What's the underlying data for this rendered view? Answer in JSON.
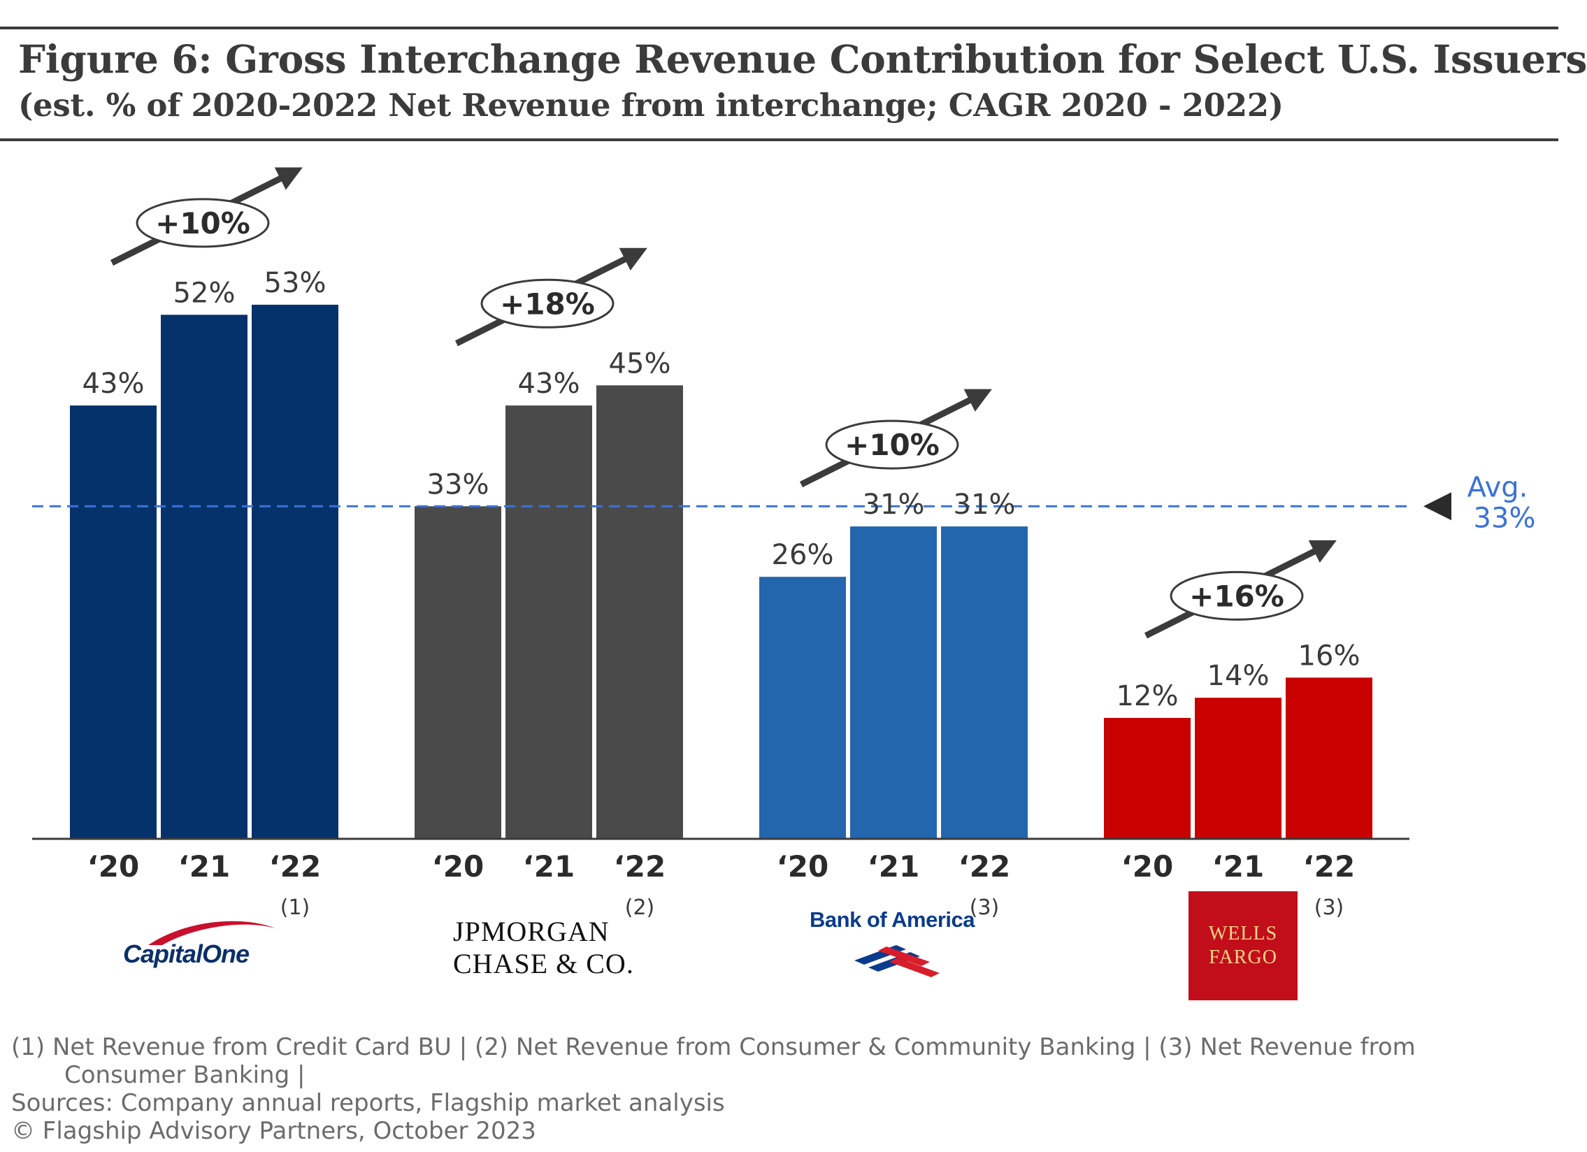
{
  "title": "Figure 6: Gross Interchange Revenue Contribution for Select U.S. Issuers",
  "subtitle": "(est. % of 2020-2022 Net Revenue from interchange; CAGR 2020 - 2022)",
  "colors": {
    "capital_one": "#06326b",
    "jpmorgan": "#4a4a4a",
    "bank_of_america": "#2366ae",
    "wells_fargo": "#c80000",
    "average_line": "#3a72d8",
    "text": "#3b3b3b"
  },
  "chart_data": {
    "type": "bar",
    "ylim": [
      0,
      60
    ],
    "categories": [
      "‘20",
      "‘21",
      "‘22"
    ],
    "groups": [
      {
        "issuer": "Capital One",
        "values": [
          43,
          52,
          53
        ],
        "labels": [
          "43%",
          "52%",
          "53%"
        ],
        "cagr": "+10%",
        "footnote_ref": "(1)",
        "color_key": "capital_one"
      },
      {
        "issuer": "JPMorgan Chase & Co.",
        "values": [
          33,
          43,
          45
        ],
        "labels": [
          "33%",
          "43%",
          "45%"
        ],
        "cagr": "+18%",
        "footnote_ref": "(2)",
        "color_key": "jpmorgan"
      },
      {
        "issuer": "Bank of America",
        "values": [
          26,
          31,
          31
        ],
        "labels": [
          "26%",
          "31%",
          "31%"
        ],
        "cagr": "+10%",
        "footnote_ref": "(3)",
        "color_key": "bank_of_america"
      },
      {
        "issuer": "Wells Fargo",
        "values": [
          12,
          14,
          16
        ],
        "labels": [
          "12%",
          "14%",
          "16%"
        ],
        "cagr": "+16%",
        "footnote_ref": "(3)",
        "color_key": "wells_fargo"
      }
    ],
    "average": {
      "value": 33,
      "label_line1": "Avg.",
      "label_line2": "33%"
    }
  },
  "logos": {
    "capital_one": "CapitalOne",
    "jpmorgan_line1": "JPMORGAN",
    "jpmorgan_line2": "CHASE & CO.",
    "bank_of_america": "Bank of America",
    "wells_fargo_line1": "WELLS",
    "wells_fargo_line2": "FARGO"
  },
  "footnotes": {
    "line1": "(1)   Net Revenue from Credit Card BU | (2) Net Revenue from Consumer & Community Banking | (3) Net Revenue from",
    "line2": "Consumer Banking |",
    "sources": "Sources: Company annual reports, Flagship market analysis",
    "copyright": "© Flagship Advisory Partners, October 2023"
  }
}
